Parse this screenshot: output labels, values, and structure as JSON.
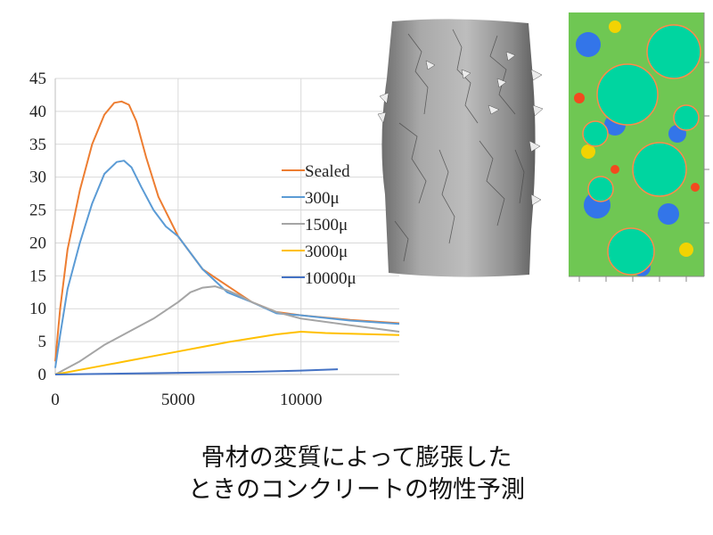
{
  "caption": {
    "line1": "骨材の変質によって膨張した",
    "line2": "ときのコンクリートの物性予測"
  },
  "chart_data": {
    "type": "line",
    "title": "",
    "xlabel": "",
    "ylabel": "",
    "xlim": [
      0,
      14000
    ],
    "ylim": [
      0,
      45
    ],
    "x_ticks": [
      0,
      5000,
      10000
    ],
    "y_ticks": [
      0,
      5,
      10,
      15,
      20,
      25,
      30,
      35,
      40,
      45
    ],
    "grid": true,
    "legend_position": "center-right",
    "series": [
      {
        "name": "Sealed",
        "color": "#ed7d31",
        "x": [
          0,
          200,
          500,
          1000,
          1500,
          2000,
          2400,
          2700,
          3000,
          3300,
          3700,
          4200,
          5000,
          6000,
          7000,
          8000,
          9000,
          10000,
          12000,
          14000
        ],
        "y": [
          2,
          10,
          19,
          28,
          35,
          39.5,
          41.3,
          41.5,
          41,
          38.5,
          33,
          27,
          21,
          16,
          13.5,
          11,
          9.5,
          9,
          8.3,
          7.8
        ]
      },
      {
        "name": "300μ",
        "color": "#5b9bd5",
        "x": [
          0,
          200,
          500,
          1000,
          1500,
          2000,
          2500,
          2800,
          3100,
          3500,
          4000,
          4500,
          5000,
          6000,
          7000,
          8000,
          9000,
          10000,
          12000,
          14000
        ],
        "y": [
          1,
          6,
          13,
          20,
          26,
          30.5,
          32.3,
          32.5,
          31.5,
          28.5,
          25,
          22.5,
          21,
          16,
          12.5,
          11,
          9.3,
          9,
          8.2,
          7.7
        ]
      },
      {
        "name": "1500μ",
        "color": "#a5a5a5",
        "x": [
          0,
          1000,
          2000,
          3000,
          4000,
          5000,
          5500,
          6000,
          6500,
          7000,
          7500,
          8000,
          9000,
          10000,
          12000,
          14000
        ],
        "y": [
          0,
          2,
          4.5,
          6.5,
          8.5,
          11,
          12.5,
          13.2,
          13.4,
          12.8,
          12,
          11,
          9.5,
          8.5,
          7.5,
          6.5
        ]
      },
      {
        "name": "3000μ",
        "color": "#ffc000",
        "x": [
          0,
          1000,
          2000,
          3000,
          4000,
          5000,
          6000,
          7000,
          8000,
          9000,
          10000,
          11000,
          12000,
          13000,
          14000
        ],
        "y": [
          0,
          0.7,
          1.4,
          2.1,
          2.8,
          3.5,
          4.2,
          4.9,
          5.5,
          6.1,
          6.5,
          6.3,
          6.2,
          6.1,
          6
        ]
      },
      {
        "name": "10000μ",
        "color": "#4472c4",
        "x": [
          0,
          2000,
          4000,
          6000,
          8000,
          10000,
          11500
        ],
        "y": [
          0,
          0.1,
          0.2,
          0.3,
          0.4,
          0.6,
          0.8
        ]
      }
    ]
  },
  "images": {
    "cylinder": {
      "description_icon": "fractured-cylinder-icon",
      "color": "#9a9a9a"
    },
    "contour": {
      "description_icon": "stress-contour-map-icon",
      "colors": [
        "#00d5a0",
        "#2b6bff",
        "#ffd400",
        "#ff3b1f",
        "#7ed321"
      ]
    }
  }
}
